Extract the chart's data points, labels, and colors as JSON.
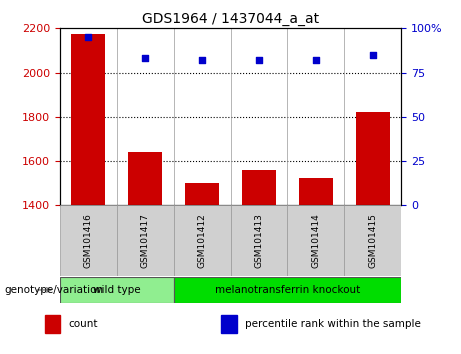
{
  "title": "GDS1964 / 1437044_a_at",
  "categories": [
    "GSM101416",
    "GSM101417",
    "GSM101412",
    "GSM101413",
    "GSM101414",
    "GSM101415"
  ],
  "bar_values": [
    2175,
    1640,
    1500,
    1560,
    1525,
    1820
  ],
  "scatter_values": [
    95,
    83,
    82,
    82,
    82,
    85
  ],
  "ylim_left": [
    1400,
    2200
  ],
  "ylim_right": [
    0,
    100
  ],
  "yticks_left": [
    1400,
    1600,
    1800,
    2000,
    2200
  ],
  "yticks_right": [
    0,
    25,
    50,
    75,
    100
  ],
  "bar_color": "#cc0000",
  "scatter_color": "#0000cc",
  "bar_bottom": 1400,
  "groups": [
    {
      "label": "wild type",
      "indices": [
        0,
        1
      ],
      "color": "#90ee90"
    },
    {
      "label": "melanotransferrin knockout",
      "indices": [
        2,
        3,
        4,
        5
      ],
      "color": "#00dd00"
    }
  ],
  "group_label": "genotype/variation",
  "legend_items": [
    {
      "label": "count",
      "color": "#cc0000"
    },
    {
      "label": "percentile rank within the sample",
      "color": "#0000cc"
    }
  ],
  "tick_label_color_left": "#cc0000",
  "tick_label_color_right": "#0000cc",
  "sample_box_color": "#d0d0d0",
  "plot_bg": "white"
}
